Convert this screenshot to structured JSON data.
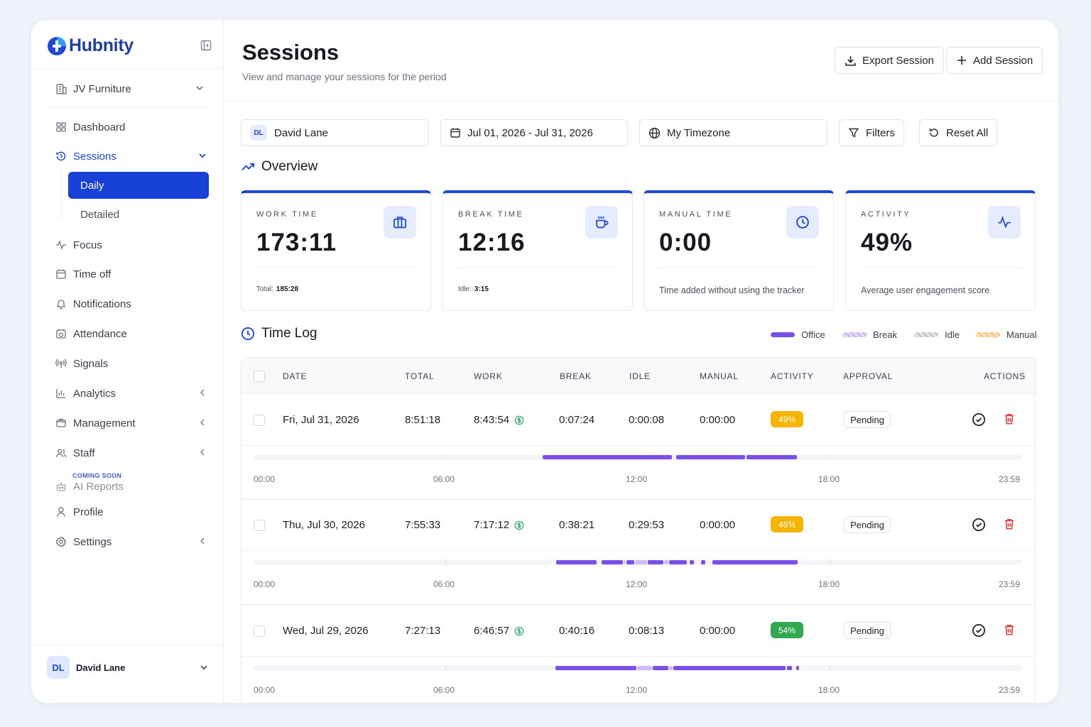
{
  "brand": {
    "name": "Hubnity"
  },
  "org": {
    "name": "JV Furniture"
  },
  "nav": {
    "dashboard": "Dashboard",
    "sessions": "Sessions",
    "daily": "Daily",
    "detailed": "Detailed",
    "focus": "Focus",
    "time_off": "Time off",
    "notifications": "Notifications",
    "attendance": "Attendance",
    "signals": "Signals",
    "analytics": "Analytics",
    "management": "Management",
    "staff": "Staff",
    "coming_soon": "COMING SOON",
    "ai_reports": "AI Reports",
    "profile": "Profile",
    "settings": "Settings"
  },
  "user": {
    "initials": "DL",
    "name": "David Lane"
  },
  "header": {
    "title": "Sessions",
    "subtitle": "View and manage your sessions for the period",
    "export_label": "Export Session",
    "add_label": "Add Session"
  },
  "filters": {
    "user_initials": "DL",
    "user_name": "David Lane",
    "date_range": "Jul 01, 2026 - Jul 31, 2026",
    "timezone": "My Timezone",
    "filters_label": "Filters",
    "reset_label": "Reset All"
  },
  "overview": {
    "title": "Overview",
    "cards": [
      {
        "label": "WORK TIME",
        "value": "173:11",
        "foot_label": "Total:",
        "foot_value": "185:28",
        "icon": "briefcase-icon"
      },
      {
        "label": "BREAK TIME",
        "value": "12:16",
        "foot_label": "Idle:",
        "foot_value": "3:15",
        "icon": "coffee-icon"
      },
      {
        "label": "MANUAL TIME",
        "value": "0:00",
        "desc": "Time added without using the tracker",
        "icon": "clock-icon"
      },
      {
        "label": "ACTIVITY",
        "value": "49%",
        "desc": "Average user engagement score",
        "icon": "activity-icon"
      }
    ]
  },
  "timelog": {
    "title": "Time Log",
    "legend": [
      {
        "label": "Office",
        "color": "#7c50e6"
      },
      {
        "label": "Break",
        "color": "#cdbdf6"
      },
      {
        "label": "Idle",
        "color": "#cfd3da"
      },
      {
        "label": "Manual",
        "color": "#f7c98a"
      }
    ],
    "columns": [
      "DATE",
      "TOTAL",
      "WORK",
      "BREAK",
      "IDLE",
      "MANUAL",
      "ACTIVITY",
      "APPROVAL",
      "ACTIONS"
    ],
    "rows": [
      {
        "date": "Fri, Jul 31, 2026",
        "total": "8:51:18",
        "work": "8:43:54",
        "break": "0:07:24",
        "idle": "0:00:08",
        "manual": "0:00:00",
        "activity": "49%",
        "activity_color": "#f5b400",
        "approval": "Pending"
      },
      {
        "date": "Thu, Jul 30, 2026",
        "total": "7:55:33",
        "work": "7:17:12",
        "break": "0:38:21",
        "idle": "0:29:53",
        "manual": "0:00:00",
        "activity": "46%",
        "activity_color": "#f5b400",
        "approval": "Pending"
      },
      {
        "date": "Wed, Jul 29, 2026",
        "total": "7:27:13",
        "work": "6:46:57",
        "break": "0:40:16",
        "idle": "0:08:13",
        "manual": "0:00:00",
        "activity": "54%",
        "activity_color": "#2fa84f",
        "approval": "Pending"
      }
    ],
    "time_labels": [
      "00:00",
      "06:00",
      "12:00",
      "18:00",
      "23:59"
    ]
  }
}
